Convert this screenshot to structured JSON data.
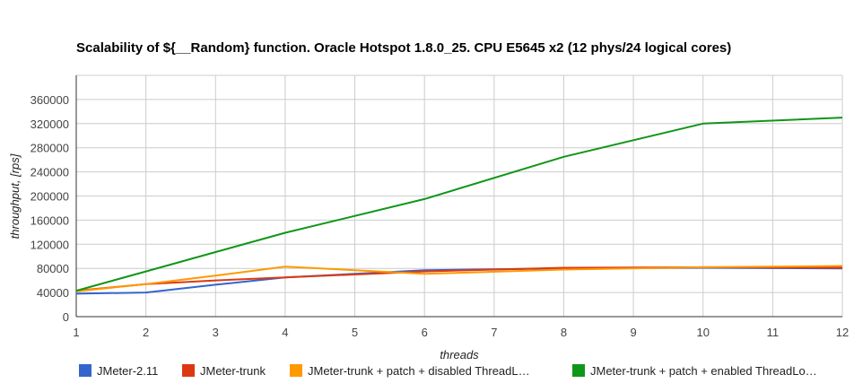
{
  "chart_data": {
    "type": "line",
    "title": "Scalability of ${__Random} function. Oracle Hotspot 1.8.0_25. CPU E5645 x2 (12 phys/24 logical cores)",
    "xlabel": "threads",
    "ylabel": "throughput, [rps]",
    "x": [
      1,
      2,
      3,
      4,
      5,
      6,
      7,
      8,
      9,
      10,
      11,
      12
    ],
    "xlim": [
      1,
      12
    ],
    "ylim": [
      0,
      400000
    ],
    "yticks": [
      0,
      40000,
      80000,
      120000,
      160000,
      200000,
      240000,
      280000,
      320000,
      360000
    ],
    "grid": true,
    "legend_position": "bottom",
    "series": [
      {
        "name": "JMeter-2.11",
        "color": "#3366cc",
        "x": [
          1,
          2,
          3,
          4,
          6,
          8,
          10,
          12
        ],
        "values": [
          38000,
          40000,
          53000,
          65000,
          77000,
          80000,
          81000,
          80000
        ]
      },
      {
        "name": "JMeter-trunk",
        "color": "#dc3912",
        "x": [
          1,
          2,
          3,
          4,
          6,
          8,
          10,
          12
        ],
        "values": [
          43000,
          54000,
          60000,
          65000,
          75000,
          81000,
          82000,
          81000
        ]
      },
      {
        "name": "JMeter-trunk + patch + disabled ThreadL…",
        "color": "#ff9900",
        "x": [
          1,
          2,
          3,
          4,
          6,
          8,
          10,
          12
        ],
        "values": [
          42000,
          54000,
          68000,
          83000,
          71000,
          78000,
          82000,
          84000
        ]
      },
      {
        "name": "JMeter-trunk + patch + enabled ThreadLo…",
        "color": "#109618",
        "x": [
          1,
          2,
          3,
          4,
          6,
          8,
          10,
          12
        ],
        "values": [
          43000,
          75000,
          107000,
          139000,
          195000,
          265000,
          320000,
          330000
        ]
      }
    ]
  }
}
